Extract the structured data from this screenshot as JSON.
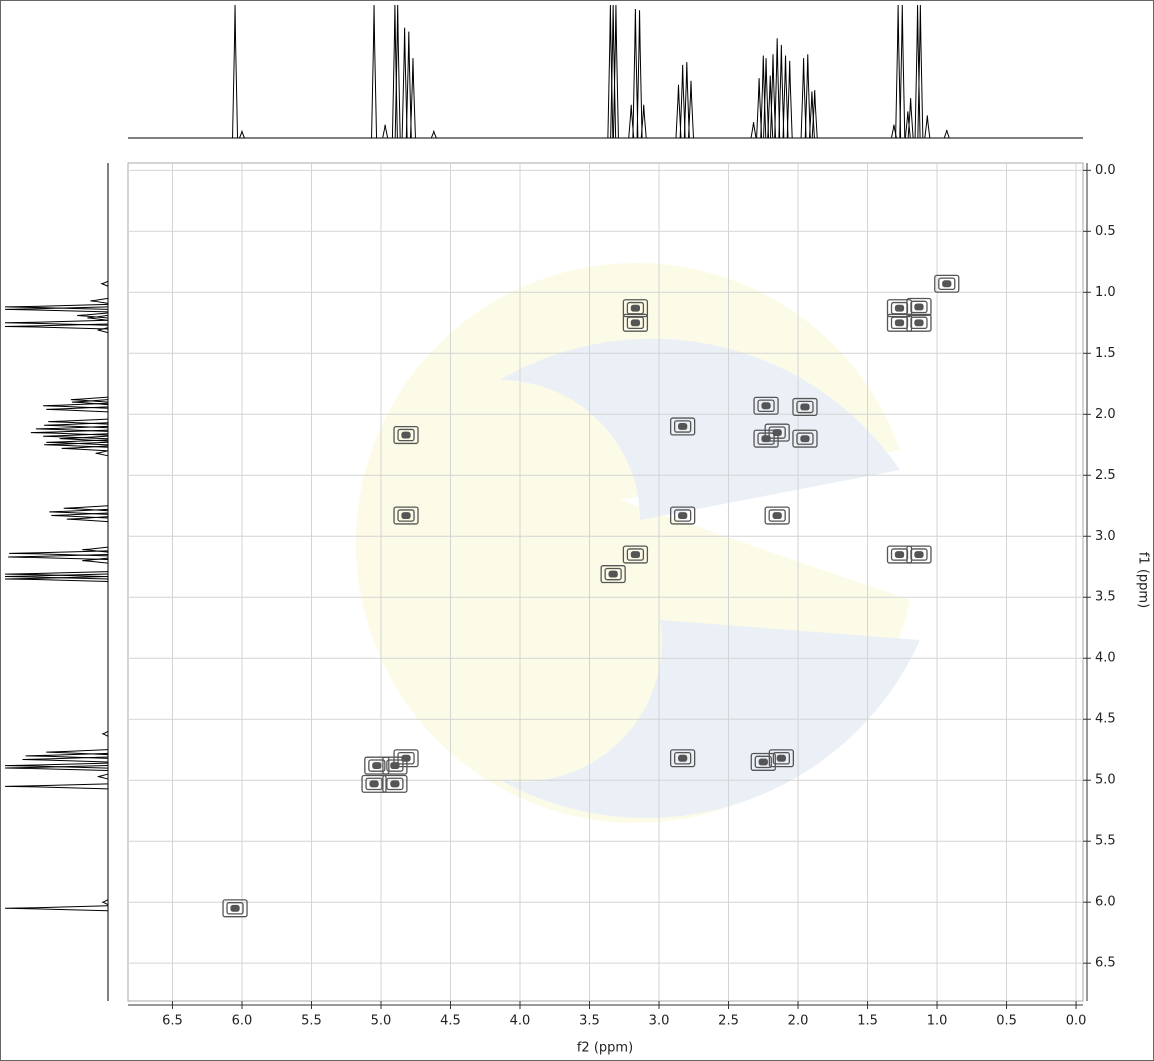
{
  "chart_data": {
    "type": "cosy",
    "xlabel": "f2 (ppm)",
    "ylabel": "f1 (ppm)",
    "xlim": [
      6.82,
      -0.05
    ],
    "ylim": [
      -0.06,
      6.81
    ],
    "xticks": [
      6.5,
      {
        "value": 6.0,
        "label": "6.0"
      },
      5.5,
      {
        "value": 5.0,
        "label": "5.0"
      },
      4.5,
      {
        "value": 4.0,
        "label": "4.0"
      },
      3.5,
      {
        "value": 3.0,
        "label": "3.0"
      },
      2.5,
      {
        "value": 2.0,
        "label": "2.0"
      },
      1.5,
      {
        "value": 1.0,
        "label": "1.0"
      },
      0.5,
      {
        "value": 0.0,
        "label": "0.0"
      }
    ],
    "yticks": [
      {
        "value": 0.0,
        "label": "0.0"
      },
      0.5,
      {
        "value": 1.0,
        "label": "1.0"
      },
      1.5,
      {
        "value": 2.0,
        "label": "2.0"
      },
      2.5,
      {
        "value": 3.0,
        "label": "3.0"
      },
      3.5,
      {
        "value": 4.0,
        "label": "4.0"
      },
      4.5,
      {
        "value": 5.0,
        "label": "5.0"
      },
      5.5,
      {
        "value": 6.0,
        "label": "6.0"
      },
      6.5
    ],
    "grid": true,
    "color": "#555555",
    "cross_peaks": {
      "x": [
        6.05,
        5.05,
        4.9,
        4.82,
        3.33,
        3.17,
        2.83,
        2.15,
        2.23,
        1.95,
        1.27,
        1.13,
        0.93,
        4.82,
        4.82,
        5.03,
        4.9,
        3.17,
        3.17,
        2.83,
        2.15,
        2.83,
        2.12,
        2.25,
        2.23,
        1.95,
        1.27,
        1.13,
        1.27,
        1.13
      ],
      "y": [
        6.05,
        5.03,
        4.88,
        4.82,
        3.31,
        3.15,
        2.83,
        2.15,
        2.2,
        1.94,
        1.25,
        1.12,
        0.93,
        2.17,
        2.83,
        4.88,
        5.03,
        1.25,
        1.13,
        2.1,
        2.83,
        4.82,
        4.82,
        4.85,
        1.93,
        2.2,
        3.15,
        3.15,
        1.13,
        1.25
      ]
    },
    "projection": {
      "x": [
        6.05,
        6.0,
        5.05,
        4.97,
        4.9,
        4.88,
        4.83,
        4.8,
        4.77,
        4.62,
        3.35,
        3.33,
        3.31,
        3.2,
        3.17,
        3.14,
        3.11,
        2.86,
        2.83,
        2.8,
        2.77,
        2.32,
        2.28,
        2.25,
        2.23,
        2.2,
        2.18,
        2.15,
        2.12,
        2.09,
        2.06,
        1.96,
        1.93,
        1.9,
        1.88,
        1.31,
        1.28,
        1.25,
        1.21,
        1.19,
        1.14,
        1.12,
        1.07,
        0.93
      ],
      "values": [
        100,
        5,
        100,
        10,
        100,
        100,
        83,
        80,
        60,
        5,
        100,
        100,
        100,
        25,
        97,
        96,
        25,
        40,
        55,
        57,
        43,
        12,
        45,
        62,
        60,
        47,
        63,
        75,
        70,
        62,
        58,
        60,
        63,
        35,
        36,
        10,
        100,
        100,
        20,
        30,
        100,
        100,
        17,
        6
      ]
    }
  }
}
